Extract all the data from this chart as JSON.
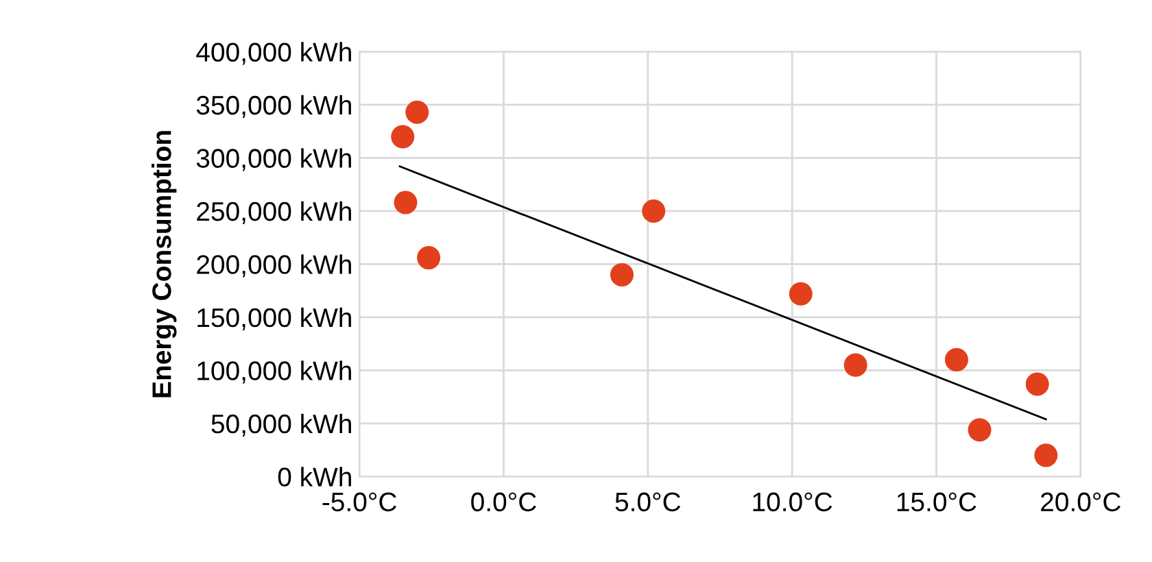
{
  "chart_data": {
    "type": "scatter",
    "ylabel": "Energy Consumption",
    "grid": true,
    "marker": "circle",
    "xlim": [
      -5,
      20
    ],
    "ylim": [
      0,
      400000
    ],
    "xticks": [
      {
        "value": -5,
        "label": "-5.0°C"
      },
      {
        "value": 0,
        "label": "0.0°C"
      },
      {
        "value": 5,
        "label": "5.0°C"
      },
      {
        "value": 10,
        "label": "10.0°C"
      },
      {
        "value": 15,
        "label": "15.0°C"
      },
      {
        "value": 20,
        "label": "20.0°C"
      }
    ],
    "yticks": [
      {
        "value": 0,
        "label": "0 kWh"
      },
      {
        "value": 50000,
        "label": "50,000 kWh"
      },
      {
        "value": 100000,
        "label": "100,000 kWh"
      },
      {
        "value": 150000,
        "label": "150,000 kWh"
      },
      {
        "value": 200000,
        "label": "200,000 kWh"
      },
      {
        "value": 250000,
        "label": "250,000 kWh"
      },
      {
        "value": 300000,
        "label": "300,000 kWh"
      },
      {
        "value": 350000,
        "label": "350,000 kWh"
      },
      {
        "value": 400000,
        "label": "400,000 kWh"
      }
    ],
    "series": [
      {
        "color": "#e2401c",
        "x": [
          -3.5,
          -3.0,
          -3.4,
          -2.6,
          4.1,
          5.2,
          10.3,
          12.2,
          15.7,
          16.5,
          18.5,
          18.8
        ],
        "values": [
          320000,
          343000,
          258000,
          206000,
          190000,
          250000,
          172000,
          105000,
          110000,
          44000,
          87000,
          20000
        ]
      },
      {
        "type": "line",
        "color": "#000000",
        "marker": "none",
        "x": [
          -3.6,
          18.8
        ],
        "values": [
          292000,
          54000
        ]
      }
    ]
  }
}
